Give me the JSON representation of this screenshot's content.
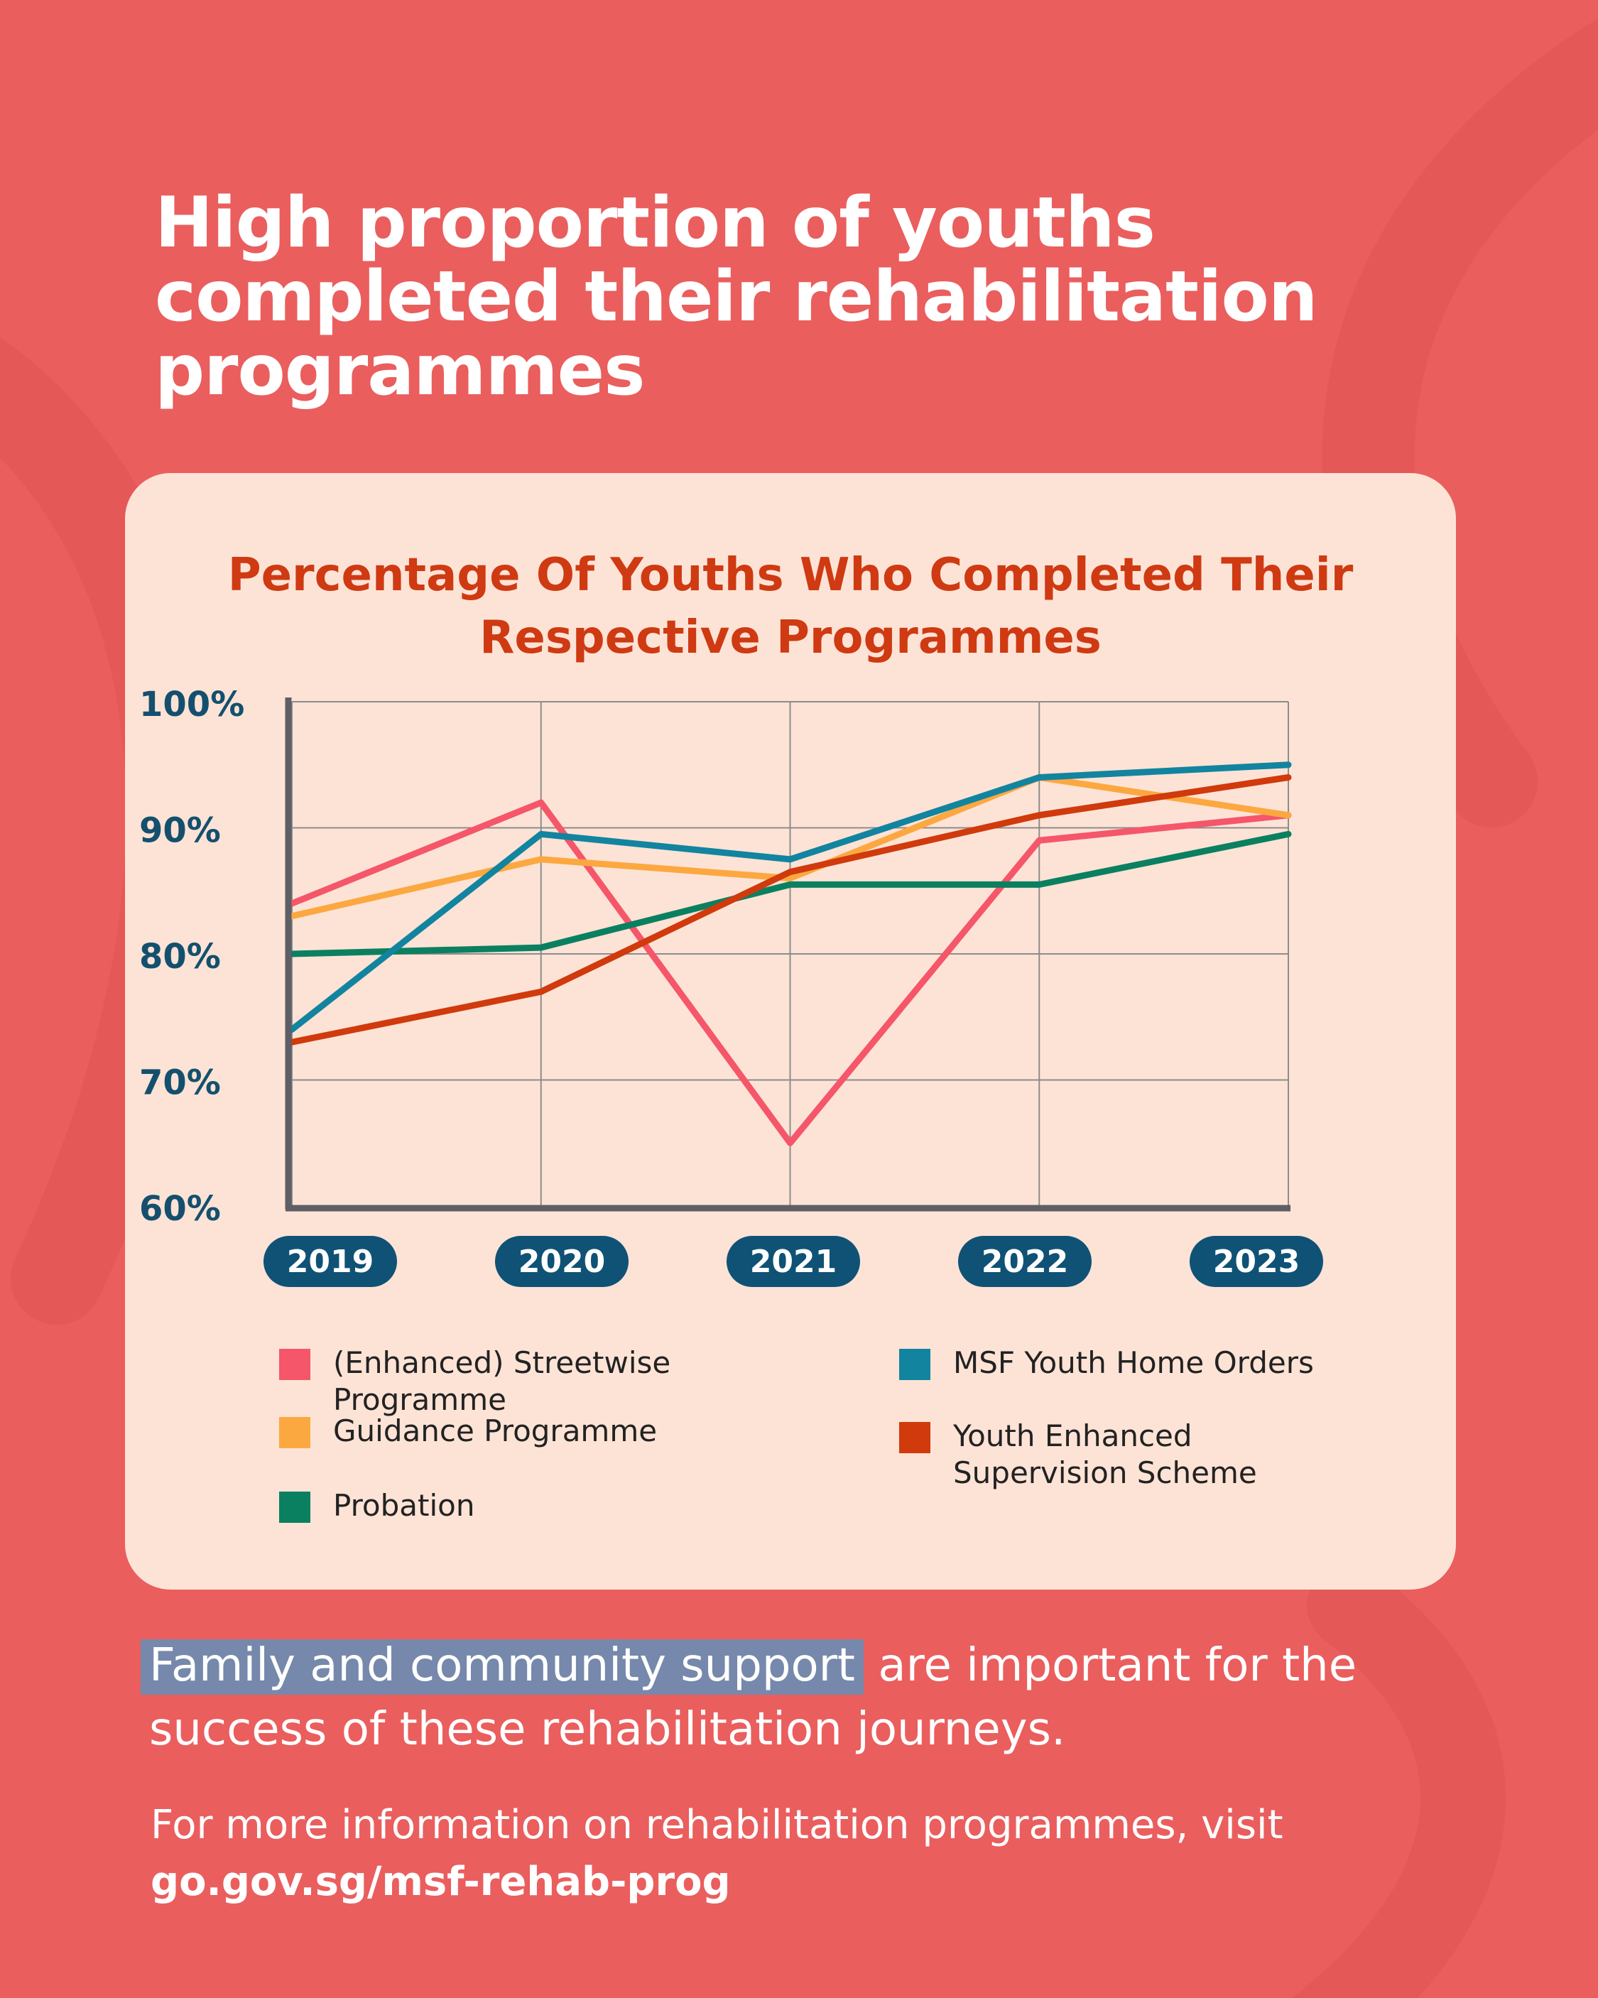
{
  "page": {
    "headline": "High proportion of youths completed their rehabilitation programmes",
    "background_color": "#ea5e5e",
    "card_color": "#fde3d6"
  },
  "footer": {
    "support_highlight": "Family and community support",
    "support_rest": " are important for the success of these rehabilitation journeys.",
    "more_info_prefix": "For more information on rehabilitation programmes, visit ",
    "more_info_link": "go.gov.sg/msf-rehab-prog"
  },
  "chart_data": {
    "type": "line",
    "title": "Percentage Of Youths Who Completed Their Respective Programmes",
    "xlabel": "",
    "ylabel": "",
    "x": [
      "2019",
      "2020",
      "2021",
      "2022",
      "2023"
    ],
    "y_ticks": [
      "60%",
      "70%",
      "80%",
      "90%",
      "100%"
    ],
    "ylim": [
      60,
      100
    ],
    "grid": true,
    "legend_position": "bottom",
    "series": [
      {
        "name": "(Enhanced) Streetwise Programme",
        "color": "#f5566a",
        "values": [
          84,
          92,
          65,
          89,
          91
        ]
      },
      {
        "name": "Guidance Programme",
        "color": "#fca840",
        "values": [
          83,
          87.5,
          86,
          94,
          91
        ]
      },
      {
        "name": "Probation",
        "color": "#0b8060",
        "values": [
          80,
          80.5,
          85.5,
          85.5,
          89.5
        ]
      },
      {
        "name": "MSF Youth Home Orders",
        "color": "#12849f",
        "values": [
          74,
          89.5,
          87.5,
          94,
          95
        ]
      },
      {
        "name": "Youth Enhanced Supervision Scheme",
        "color": "#d03a0c",
        "values": [
          73,
          77,
          86.5,
          91,
          94
        ]
      }
    ]
  }
}
